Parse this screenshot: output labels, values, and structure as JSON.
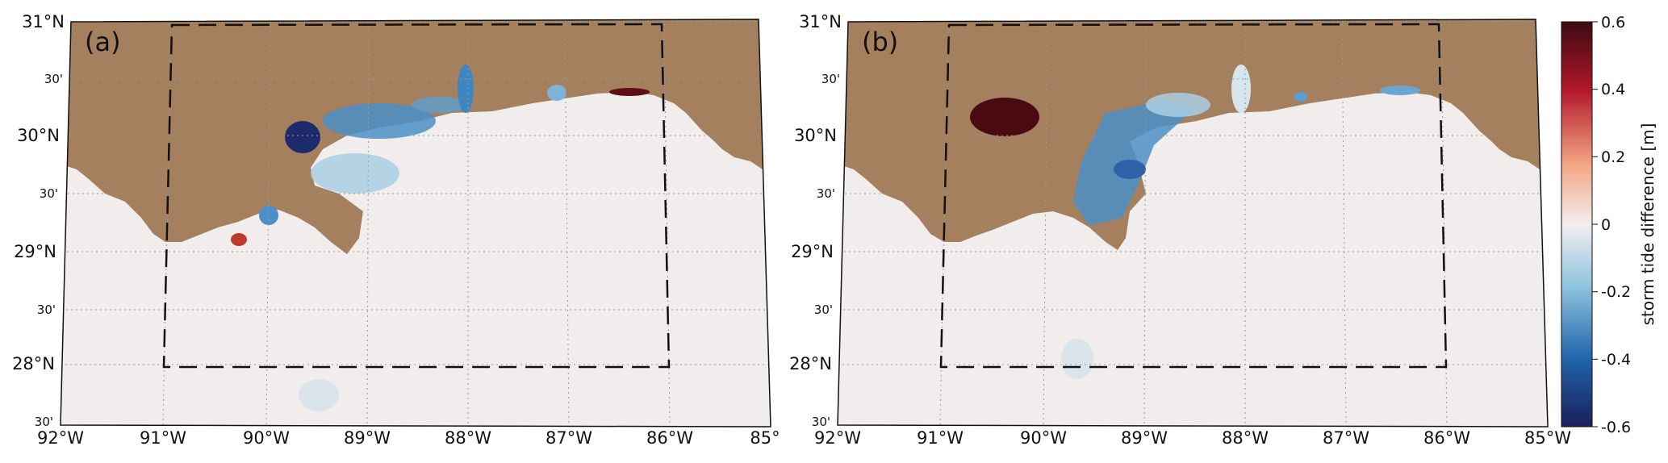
{
  "panels": [
    {
      "label": "(a)",
      "lat_labels": [
        "31°N",
        "30'",
        "30°N",
        "30'",
        "29°N",
        "30'",
        "28°N",
        "30'"
      ],
      "lon_labels": [
        "92°W",
        "91°W",
        "90°W",
        "89°W",
        "88°W",
        "87°W",
        "86°W",
        "85°"
      ]
    },
    {
      "label": "(b)",
      "lat_labels": [
        "31°N",
        "30'",
        "30°N",
        "30'",
        "29°N",
        "30'",
        "28°N",
        "30'"
      ],
      "lon_labels": [
        "92°W",
        "91°W",
        "90°W",
        "89°W",
        "88°W",
        "87°W",
        "86°W",
        "85°W"
      ]
    }
  ],
  "colorbar": {
    "label": "storm tide difference [m]",
    "ticks": [
      "0.6",
      "0.4",
      "0.2",
      "0",
      "-0.2",
      "-0.4",
      "-0.6"
    ],
    "range": [
      -0.6,
      0.6
    ],
    "colors": [
      "#1a1f5a",
      "#2166ac",
      "#92c5de",
      "#f2eeee",
      "#f4a582",
      "#b2182b",
      "#3d0a10"
    ]
  },
  "colors": {
    "land": "#a5805f",
    "water": "#f1eded",
    "frame": "#111111",
    "box": "#111111"
  }
}
